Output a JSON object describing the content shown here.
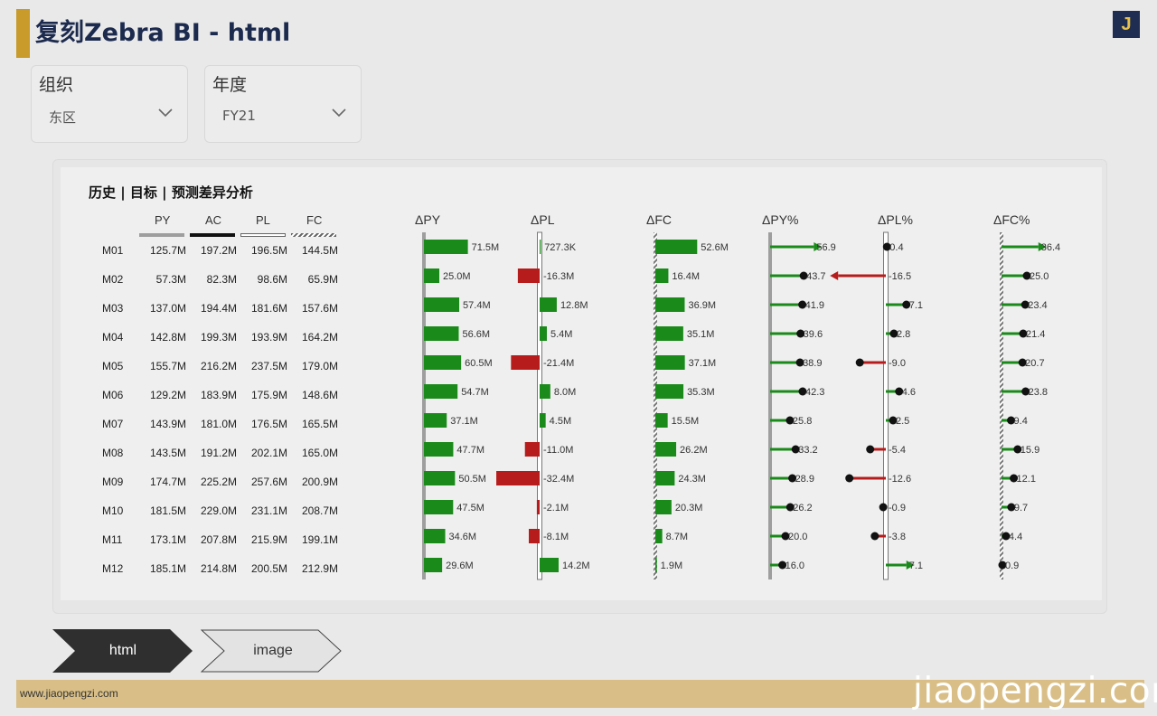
{
  "app": {
    "title": "复刻Zebra BI - html",
    "logo_letter": "J"
  },
  "filters": [
    {
      "label": "组织",
      "value": "东区"
    },
    {
      "label": "年度",
      "value": "FY21"
    }
  ],
  "report": {
    "title": "历史 | 目标 | 预测差异分析"
  },
  "table": {
    "columns": [
      "PY",
      "AC",
      "PL",
      "FC"
    ],
    "rows": [
      {
        "month": "M01",
        "PY": "125.7M",
        "AC": "197.2M",
        "PL": "196.5M",
        "FC": "144.5M"
      },
      {
        "month": "M02",
        "PY": "57.3M",
        "AC": "82.3M",
        "PL": "98.6M",
        "FC": "65.9M"
      },
      {
        "month": "M03",
        "PY": "137.0M",
        "AC": "194.4M",
        "PL": "181.6M",
        "FC": "157.6M"
      },
      {
        "month": "M04",
        "PY": "142.8M",
        "AC": "199.3M",
        "PL": "193.9M",
        "FC": "164.2M"
      },
      {
        "month": "M05",
        "PY": "155.7M",
        "AC": "216.2M",
        "PL": "237.5M",
        "FC": "179.0M"
      },
      {
        "month": "M06",
        "PY": "129.2M",
        "AC": "183.9M",
        "PL": "175.9M",
        "FC": "148.6M"
      },
      {
        "month": "M07",
        "PY": "143.9M",
        "AC": "181.0M",
        "PL": "176.5M",
        "FC": "165.5M"
      },
      {
        "month": "M08",
        "PY": "143.5M",
        "AC": "191.2M",
        "PL": "202.1M",
        "FC": "165.0M"
      },
      {
        "month": "M09",
        "PY": "174.7M",
        "AC": "225.2M",
        "PL": "257.6M",
        "FC": "200.9M"
      },
      {
        "month": "M10",
        "PY": "181.5M",
        "AC": "229.0M",
        "PL": "231.1M",
        "FC": "208.7M"
      },
      {
        "month": "M11",
        "PY": "173.1M",
        "AC": "207.8M",
        "PL": "215.9M",
        "FC": "199.1M"
      },
      {
        "month": "M12",
        "PY": "185.1M",
        "AC": "214.8M",
        "PL": "200.5M",
        "FC": "212.9M"
      }
    ]
  },
  "chart_data": {
    "type": "bar",
    "categories": [
      "M01",
      "M02",
      "M03",
      "M04",
      "M05",
      "M06",
      "M07",
      "M08",
      "M09",
      "M10",
      "M11",
      "M12"
    ],
    "series": [
      {
        "name": "ΔPY",
        "unit": "M",
        "values": [
          71.5,
          25.0,
          57.4,
          56.6,
          60.5,
          54.7,
          37.1,
          47.7,
          50.5,
          47.5,
          34.6,
          29.6
        ],
        "labels": [
          "71.5M",
          "25.0M",
          "57.4M",
          "56.6M",
          "60.5M",
          "54.7M",
          "37.1M",
          "47.7M",
          "50.5M",
          "47.5M",
          "34.6M",
          "29.6M"
        ]
      },
      {
        "name": "ΔPL",
        "unit": "M",
        "values": [
          0.7273,
          -16.3,
          12.8,
          5.4,
          -21.4,
          8.0,
          4.5,
          -11.0,
          -32.4,
          -2.1,
          -8.1,
          14.2
        ],
        "labels": [
          "727.3K",
          "-16.3M",
          "12.8M",
          "5.4M",
          "-21.4M",
          "8.0M",
          "4.5M",
          "-11.0M",
          "-32.4M",
          "-2.1M",
          "-8.1M",
          "14.2M"
        ]
      },
      {
        "name": "ΔFC",
        "unit": "M",
        "values": [
          52.6,
          16.4,
          36.9,
          35.1,
          37.1,
          35.3,
          15.5,
          26.2,
          24.3,
          20.3,
          8.7,
          1.9
        ],
        "labels": [
          "52.6M",
          "16.4M",
          "36.9M",
          "35.1M",
          "37.1M",
          "35.3M",
          "15.5M",
          "26.2M",
          "24.3M",
          "20.3M",
          "8.7M",
          "1.9M"
        ]
      },
      {
        "name": "ΔPY%",
        "values": [
          56.9,
          43.7,
          41.9,
          39.6,
          38.9,
          42.3,
          25.8,
          33.2,
          28.9,
          26.2,
          20.0,
          16.0
        ],
        "labels": [
          "56.9",
          "43.7",
          "41.9",
          "39.6",
          "38.9",
          "42.3",
          "25.8",
          "33.2",
          "28.9",
          "26.2",
          "20.0",
          "16.0"
        ]
      },
      {
        "name": "ΔPL%",
        "values": [
          0.4,
          -16.5,
          7.1,
          2.8,
          -9.0,
          4.6,
          2.5,
          -5.4,
          -12.6,
          -0.9,
          -3.8,
          7.1
        ],
        "labels": [
          "0.4",
          "-16.5",
          "7.1",
          "2.8",
          "-9.0",
          "4.6",
          "2.5",
          "-5.4",
          "-12.6",
          "-0.9",
          "-3.8",
          "7.1"
        ]
      },
      {
        "name": "ΔFC%",
        "values": [
          36.4,
          25.0,
          23.4,
          21.4,
          20.7,
          23.8,
          9.4,
          15.9,
          12.1,
          9.7,
          4.4,
          0.9
        ],
        "labels": [
          "36.4",
          "25.0",
          "23.4",
          "21.4",
          "20.7",
          "23.8",
          "9.4",
          "15.9",
          "12.1",
          "9.7",
          "4.4",
          "0.9"
        ]
      }
    ],
    "colors": {
      "positive": "#1a8a1a",
      "negative": "#b71c1c",
      "axis_py": "#9e9e9e",
      "marker": "#111111"
    }
  },
  "nav": [
    {
      "label": "html",
      "active": true
    },
    {
      "label": "image",
      "active": false
    }
  ],
  "footer": {
    "url": "www.jiaopengzi.com",
    "watermark": "jiaopengzi.com"
  }
}
